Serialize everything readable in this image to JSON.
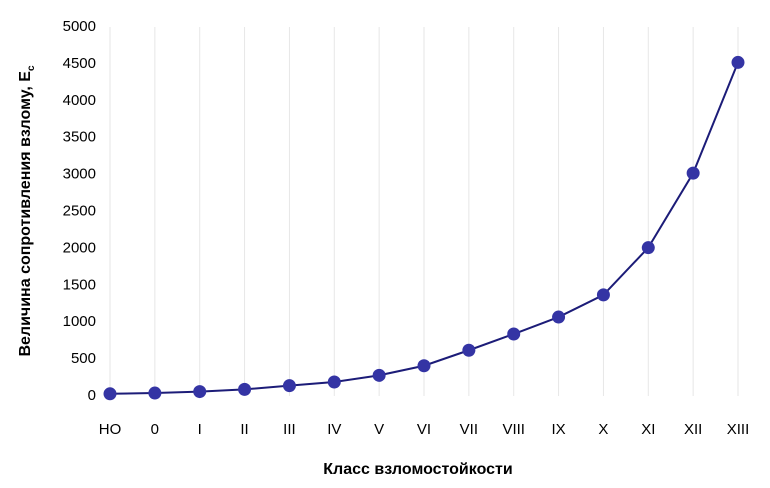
{
  "chart_data": {
    "type": "line",
    "x_label": "Класс взломостойкости",
    "y_label": "Величина сопротивления взлому, E",
    "y_label_subscript": "c",
    "categories": [
      "НО",
      "0",
      "I",
      "II",
      "III",
      "IV",
      "V",
      "VI",
      "VII",
      "VIII",
      "IX",
      "X",
      "XI",
      "XII",
      "XIII"
    ],
    "series": [
      {
        "color": "#1c1c78",
        "marker_color": "#3434a4",
        "values": [
          30,
          40,
          60,
          90,
          140,
          190,
          280,
          410,
          620,
          840,
          1070,
          1370,
          2010,
          3020,
          4520
        ]
      }
    ],
    "ylim": [
      0,
      5000
    ],
    "yticks": [
      0,
      500,
      1000,
      1500,
      2000,
      2500,
      3000,
      3500,
      4000,
      4500,
      5000
    ],
    "grid": "x"
  }
}
